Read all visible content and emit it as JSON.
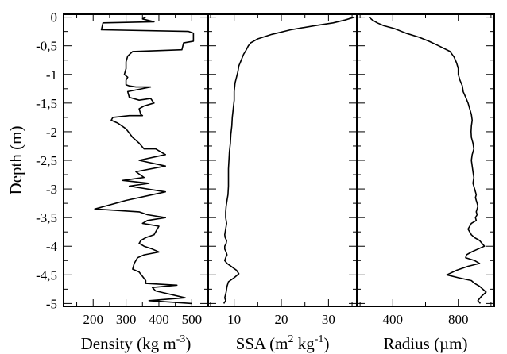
{
  "chart_data": [
    {
      "type": "line",
      "xlabel": "Density (kg m-3)",
      "xlabel_parts": {
        "base": "Density (kg m",
        "sup": "-3",
        "tail": ")"
      },
      "ylabel": "Depth (m)",
      "xlim": [
        110,
        550
      ],
      "ylim": [
        -5.05,
        0.05
      ],
      "x_ticks": [
        200,
        300,
        400,
        500
      ],
      "x_tick_labels": [
        "200",
        "300",
        "400",
        "500"
      ],
      "y_ticks": [
        0,
        -0.5,
        -1,
        -1.5,
        -2,
        -2.5,
        -3,
        -3.5,
        -4,
        -4.5,
        -5
      ],
      "y_tick_labels": [
        "0",
        "-0,5",
        "-1",
        "-1,5",
        "-2",
        "-2,5",
        "-3",
        "-3,5",
        "-4",
        "-4,5",
        "-5"
      ],
      "series": [
        {
          "x": [
            360,
            350,
            385,
            230,
            225,
            490,
            505,
            505,
            475,
            470,
            320,
            305,
            300,
            300,
            295,
            305,
            300,
            300,
            310,
            330,
            375,
            305,
            310,
            340,
            375,
            385,
            355,
            340,
            345,
            350,
            310,
            260,
            255,
            275,
            300,
            320,
            330,
            340,
            355,
            390,
            420,
            340,
            420,
            330,
            355,
            290,
            370,
            310,
            420,
            300,
            205,
            340,
            365,
            420,
            365,
            350,
            400,
            385,
            360,
            345,
            340,
            355,
            380,
            400,
            355,
            335,
            325,
            320,
            340,
            360,
            360,
            455,
            380,
            390,
            480,
            370,
            500
          ],
          "y": [
            0.0,
            -0.03,
            -0.08,
            -0.1,
            -0.22,
            -0.25,
            -0.28,
            -0.42,
            -0.45,
            -0.57,
            -0.6,
            -0.68,
            -0.78,
            -0.9,
            -1.0,
            -1.05,
            -1.1,
            -1.18,
            -1.2,
            -1.22,
            -1.22,
            -1.3,
            -1.4,
            -1.45,
            -1.42,
            -1.5,
            -1.55,
            -1.6,
            -1.7,
            -1.72,
            -1.72,
            -1.75,
            -1.8,
            -1.85,
            -1.95,
            -2.1,
            -2.15,
            -2.2,
            -2.3,
            -2.3,
            -2.4,
            -2.5,
            -2.6,
            -2.7,
            -2.8,
            -2.85,
            -2.9,
            -2.95,
            -3.05,
            -3.2,
            -3.35,
            -3.4,
            -3.45,
            -3.5,
            -3.55,
            -3.6,
            -3.65,
            -3.8,
            -3.85,
            -3.9,
            -3.95,
            -4.0,
            -4.05,
            -4.1,
            -4.15,
            -4.2,
            -4.3,
            -4.4,
            -4.45,
            -4.6,
            -4.65,
            -4.68,
            -4.72,
            -4.78,
            -4.9,
            -4.95,
            -5.0
          ]
        }
      ]
    },
    {
      "type": "line",
      "xlabel": "SSA (m2 kg-1)",
      "xlabel_parts": {
        "base": "SSA (m",
        "sup": "2",
        "mid": " kg",
        "sup2": "-1",
        "tail": ")"
      },
      "xlim": [
        4.5,
        36
      ],
      "ylim": [
        -5.05,
        0.05
      ],
      "x_ticks": [
        10,
        20,
        30
      ],
      "x_tick_labels": [
        "10",
        "20",
        "30"
      ],
      "y_ticks": [
        0,
        -0.5,
        -1,
        -1.5,
        -2,
        -2.5,
        -3,
        -3.5,
        -4,
        -4.5,
        -5
      ],
      "series": [
        {
          "x": [
            35.5,
            33.5,
            31.0,
            27.0,
            22.0,
            18.0,
            15.0,
            13.5,
            13.0,
            12.5,
            12.0,
            11.5,
            11.0,
            10.8,
            10.5,
            10.2,
            10.0,
            10.0,
            9.8,
            9.6,
            9.5,
            9.3,
            9.2,
            9.0,
            8.9,
            8.8,
            8.8,
            8.8,
            8.7,
            8.5,
            8.3,
            8.2,
            8.2,
            8.4,
            8.2,
            8.0,
            8.1,
            8.4,
            8.3,
            8.0,
            8.0,
            8.3,
            8.5,
            8.2,
            8.0,
            8.5,
            9.5,
            10.5,
            11.0,
            10.0,
            8.8,
            8.5,
            8.3,
            8.0,
            8.2,
            7.8
          ],
          "y": [
            0.0,
            -0.05,
            -0.1,
            -0.15,
            -0.22,
            -0.3,
            -0.38,
            -0.45,
            -0.5,
            -0.58,
            -0.65,
            -0.75,
            -0.85,
            -0.95,
            -1.05,
            -1.15,
            -1.3,
            -1.45,
            -1.6,
            -1.75,
            -1.9,
            -2.05,
            -2.2,
            -2.35,
            -2.5,
            -2.65,
            -2.8,
            -2.95,
            -3.1,
            -3.2,
            -3.3,
            -3.4,
            -3.5,
            -3.6,
            -3.7,
            -3.8,
            -3.85,
            -3.9,
            -3.95,
            -4.0,
            -4.05,
            -4.1,
            -4.15,
            -4.2,
            -4.25,
            -4.3,
            -4.36,
            -4.42,
            -4.48,
            -4.55,
            -4.62,
            -4.7,
            -4.8,
            -4.9,
            -4.95,
            -5.0
          ]
        }
      ]
    },
    {
      "type": "line",
      "xlabel": "Radius (µm)",
      "xlim": [
        180,
        1020
      ],
      "ylim": [
        -5.05,
        0.05
      ],
      "x_ticks": [
        400,
        800
      ],
      "x_tick_labels": [
        "400",
        "800"
      ],
      "y_ticks": [
        0,
        -0.5,
        -1,
        -1.5,
        -2,
        -2.5,
        -3,
        -3.5,
        -4,
        -4.5,
        -5
      ],
      "series": [
        {
          "x": [
            255,
            275,
            305,
            345,
            410,
            480,
            560,
            620,
            680,
            750,
            775,
            790,
            800,
            800,
            810,
            825,
            830,
            845,
            860,
            870,
            880,
            885,
            880,
            878,
            880,
            890,
            895,
            885,
            880,
            885,
            890,
            895,
            890,
            900,
            905,
            910,
            905,
            910,
            915,
            920,
            915,
            910,
            915,
            905,
            910,
            880,
            870,
            860,
            870,
            880,
            900,
            930,
            960,
            920,
            880,
            850,
            845,
            900,
            930,
            860,
            790,
            730,
            800,
            880,
            900,
            930,
            970,
            940,
            920,
            935
          ],
          "y": [
            0.0,
            -0.05,
            -0.1,
            -0.15,
            -0.2,
            -0.28,
            -0.35,
            -0.42,
            -0.5,
            -0.6,
            -0.7,
            -0.8,
            -0.9,
            -1.0,
            -1.1,
            -1.2,
            -1.3,
            -1.4,
            -1.5,
            -1.6,
            -1.7,
            -1.8,
            -1.9,
            -2.0,
            -2.1,
            -2.2,
            -2.3,
            -2.4,
            -2.5,
            -2.6,
            -2.7,
            -2.8,
            -2.9,
            -3.0,
            -3.05,
            -3.1,
            -3.15,
            -3.2,
            -3.25,
            -3.3,
            -3.35,
            -3.4,
            -3.45,
            -3.5,
            -3.55,
            -3.6,
            -3.65,
            -3.7,
            -3.75,
            -3.8,
            -3.85,
            -3.9,
            -4.0,
            -4.05,
            -4.1,
            -4.15,
            -4.2,
            -4.25,
            -4.3,
            -4.35,
            -4.42,
            -4.5,
            -4.55,
            -4.6,
            -4.65,
            -4.7,
            -4.8,
            -4.88,
            -4.95,
            -5.0
          ]
        }
      ]
    }
  ]
}
